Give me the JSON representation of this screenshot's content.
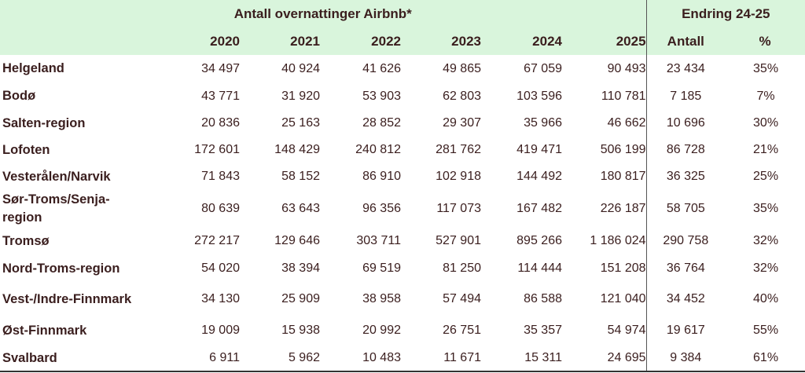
{
  "header": {
    "group_main": "Antall overnattinger Airbnb*",
    "group_change": "Endring 24-25",
    "columns": [
      "2020",
      "2021",
      "2022",
      "2023",
      "2024",
      "2025",
      "Antall",
      "%"
    ]
  },
  "table": {
    "rows": [
      [
        "Helgeland",
        "34 497",
        "40 924",
        "41 626",
        "49 865",
        "67 059",
        "90 493",
        "23 434",
        "35%"
      ],
      [
        "Bodø",
        "43 771",
        "31 920",
        "53 903",
        "62 803",
        "103 596",
        "110 781",
        "7 185",
        "7%"
      ],
      [
        "Salten-region",
        "20 836",
        "25 163",
        "28 852",
        "29 307",
        "35 966",
        "46 662",
        "10 696",
        "30%"
      ],
      [
        "Lofoten",
        "172 601",
        "148 429",
        "240 812",
        "281 762",
        "419 471",
        "506 199",
        "86 728",
        "21%"
      ],
      [
        "Vesterålen/Narvik",
        "71 843",
        "58 152",
        "86 910",
        "102 918",
        "144 492",
        "180 817",
        "36 325",
        "25%"
      ],
      [
        "Sør-Troms/Senja-region",
        "80 639",
        "63 643",
        "96 356",
        "117 073",
        "167 482",
        "226 187",
        "58 705",
        "35%"
      ],
      [
        "Tromsø",
        "272 217",
        "129 646",
        "303 711",
        "527 901",
        "895 266",
        "1 186 024",
        "290 758",
        "32%"
      ],
      [
        "Nord-Troms-region",
        "54 020",
        "38 394",
        "69 519",
        "81 250",
        "114 444",
        "151 208",
        "36 764",
        "32%"
      ],
      [
        "Vest-/Indre-Finnmark",
        "34 130",
        "25 909",
        "38 958",
        "57 494",
        "86 588",
        "121 040",
        "34 452",
        "40%"
      ],
      [
        "Øst-Finnmark",
        "19 009",
        "15 938",
        "20 992",
        "26 751",
        "35 357",
        "54 974",
        "19 617",
        "55%"
      ],
      [
        "Svalbard",
        "6 911",
        "5 962",
        "10 483",
        "11 671",
        "15 311",
        "24 695",
        "9 384",
        "61%"
      ]
    ]
  }
}
